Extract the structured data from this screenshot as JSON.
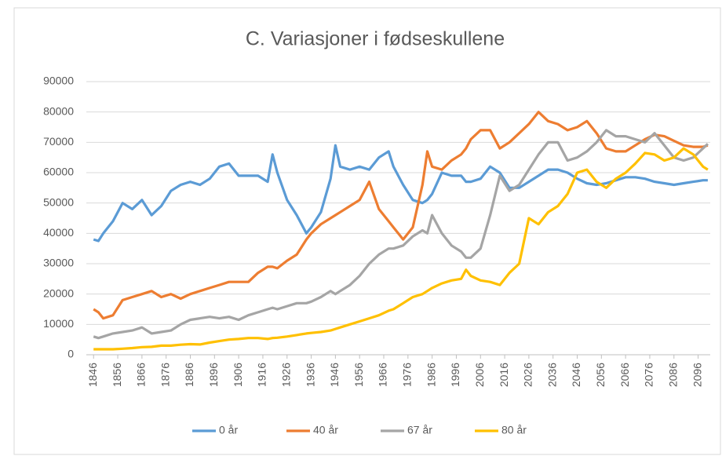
{
  "chart_data": {
    "type": "line",
    "title": "C. Variasjoner i fødseskullene",
    "x": [
      1846,
      1848,
      1850,
      1854,
      1858,
      1862,
      1866,
      1870,
      1874,
      1878,
      1882,
      1886,
      1890,
      1894,
      1898,
      1902,
      1906,
      1910,
      1914,
      1918,
      1920,
      1922,
      1926,
      1930,
      1934,
      1936,
      1940,
      1944,
      1946,
      1948,
      1952,
      1956,
      1960,
      1964,
      1968,
      1970,
      1974,
      1978,
      1982,
      1984,
      1986,
      1990,
      1994,
      1998,
      2000,
      2002,
      2006,
      2010,
      2014,
      2018,
      2022,
      2026,
      2030,
      2034,
      2038,
      2042,
      2046,
      2050,
      2054,
      2058,
      2062,
      2066,
      2070,
      2074,
      2078,
      2082,
      2086,
      2090,
      2094,
      2098,
      2100
    ],
    "series": [
      {
        "name": "0 år",
        "color": "#5b9bd5",
        "values": [
          38000,
          37500,
          40000,
          44000,
          50000,
          48000,
          51000,
          46000,
          49000,
          54000,
          56000,
          57000,
          56000,
          58000,
          62000,
          63000,
          59000,
          59000,
          59000,
          57000,
          66000,
          60000,
          51000,
          46000,
          40000,
          42000,
          47000,
          58000,
          69000,
          62000,
          61000,
          62000,
          61000,
          65000,
          67000,
          62000,
          56000,
          51000,
          50000,
          51000,
          53000,
          60000,
          59000,
          59000,
          57000,
          57000,
          58000,
          62000,
          60000,
          55000,
          55000,
          57000,
          59000,
          61000,
          61000,
          60000,
          58000,
          56500,
          56000,
          56500,
          57500,
          58500,
          58500,
          58000,
          57000,
          56500,
          56000,
          56500,
          57000,
          57500,
          57500
        ]
      },
      {
        "name": "40 år",
        "color": "#ed7d31",
        "values": [
          15000,
          14000,
          12000,
          13000,
          18000,
          19000,
          20000,
          21000,
          19000,
          20000,
          18500,
          20000,
          21000,
          22000,
          23000,
          24000,
          24000,
          24000,
          27000,
          29000,
          29000,
          28500,
          31000,
          33000,
          38000,
          40000,
          43000,
          45000,
          46000,
          47000,
          49000,
          51000,
          57000,
          48000,
          44000,
          42000,
          38000,
          42000,
          56000,
          67000,
          62000,
          61000,
          64000,
          66000,
          68000,
          71000,
          74000,
          74000,
          68000,
          70000,
          73000,
          76000,
          80000,
          77000,
          76000,
          74000,
          75000,
          77000,
          73000,
          68000,
          67000,
          67000,
          69000,
          71000,
          72500,
          72000,
          70500,
          69000,
          68500,
          68500,
          69000
        ]
      },
      {
        "name": "67 år",
        "color": "#a5a5a5",
        "values": [
          6000,
          5500,
          6000,
          7000,
          7500,
          8000,
          9000,
          7000,
          7500,
          8000,
          10000,
          11500,
          12000,
          12500,
          12000,
          12500,
          11500,
          13000,
          14000,
          15000,
          15500,
          15000,
          16000,
          17000,
          17000,
          17500,
          19000,
          21000,
          20000,
          21000,
          23000,
          26000,
          30000,
          33000,
          35000,
          35000,
          36000,
          39000,
          41000,
          40000,
          46000,
          40000,
          36000,
          34000,
          32000,
          32000,
          35000,
          46000,
          59000,
          54000,
          56000,
          61000,
          66000,
          70000,
          70000,
          64000,
          65000,
          67000,
          70000,
          74000,
          72000,
          72000,
          71000,
          70000,
          73000,
          69000,
          65000,
          64000,
          65000,
          68000,
          69500
        ]
      },
      {
        "name": "80 år",
        "color": "#ffc000",
        "values": [
          1800,
          1800,
          1800,
          1800,
          2000,
          2200,
          2500,
          2600,
          3000,
          3000,
          3300,
          3500,
          3400,
          4000,
          4500,
          5000,
          5200,
          5500,
          5500,
          5200,
          5500,
          5600,
          6000,
          6500,
          7000,
          7200,
          7500,
          8000,
          8500,
          9000,
          10000,
          11000,
          12000,
          13000,
          14500,
          15000,
          17000,
          19000,
          20000,
          21000,
          22000,
          23500,
          24500,
          25000,
          28000,
          26000,
          24500,
          24000,
          23000,
          27000,
          30000,
          45000,
          43000,
          47000,
          49000,
          53000,
          60000,
          61000,
          57000,
          55000,
          58000,
          60000,
          63000,
          66500,
          66000,
          64000,
          65000,
          68000,
          66000,
          62000,
          61000
        ]
      }
    ],
    "xlim": [
      1843,
      2101
    ],
    "xticks": [
      1846,
      1856,
      1866,
      1876,
      1886,
      1896,
      1906,
      1916,
      1926,
      1936,
      1946,
      1956,
      1966,
      1976,
      1986,
      1996,
      2006,
      2016,
      2026,
      2036,
      2046,
      2056,
      2066,
      2076,
      2086,
      2096
    ],
    "ylim": [
      0,
      90000
    ],
    "yticks": [
      0,
      10000,
      20000,
      30000,
      40000,
      50000,
      60000,
      70000,
      80000,
      90000
    ],
    "grid": true,
    "legend": "bottom"
  }
}
